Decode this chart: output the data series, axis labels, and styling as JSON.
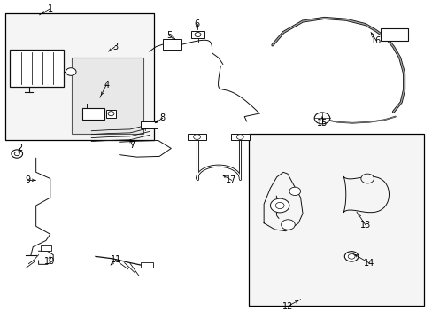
{
  "bg_color": "#ffffff",
  "part_color": "#111111",
  "box_fill": "#f0f0f0",
  "box_edge": "#333333",
  "label_fontsize": 7,
  "lw_thin": 0.7,
  "lw_med": 1.2,
  "lw_thick": 2.2,
  "boxes": {
    "b1": [
      0.01,
      0.56,
      0.345,
      0.4
    ],
    "b3": [
      0.165,
      0.58,
      0.165,
      0.24
    ],
    "b12": [
      0.575,
      0.04,
      0.405,
      0.54
    ]
  },
  "labels": [
    [
      1,
      0.115,
      0.975,
      0.09,
      0.955,
      true
    ],
    [
      2,
      0.045,
      0.535,
      0.043,
      0.518,
      true
    ],
    [
      3,
      0.265,
      0.855,
      0.25,
      0.84,
      true
    ],
    [
      4,
      0.245,
      0.735,
      0.23,
      0.695,
      true
    ],
    [
      5,
      0.39,
      0.89,
      0.405,
      0.878,
      true
    ],
    [
      6,
      0.455,
      0.928,
      0.455,
      0.91,
      true
    ],
    [
      7,
      0.305,
      0.545,
      0.3,
      0.563,
      true
    ],
    [
      8,
      0.375,
      0.63,
      0.358,
      0.615,
      true
    ],
    [
      9,
      0.063,
      0.435,
      0.08,
      0.435,
      true
    ],
    [
      10,
      0.113,
      0.18,
      0.115,
      0.198,
      true
    ],
    [
      11,
      0.268,
      0.185,
      0.255,
      0.168,
      true
    ],
    [
      12,
      0.665,
      0.038,
      0.695,
      0.06,
      true
    ],
    [
      13,
      0.845,
      0.295,
      0.825,
      0.335,
      true
    ],
    [
      14,
      0.853,
      0.175,
      0.815,
      0.205,
      true
    ],
    [
      15,
      0.745,
      0.615,
      0.745,
      0.635,
      true
    ],
    [
      16,
      0.87,
      0.875,
      0.858,
      0.9,
      true
    ],
    [
      17,
      0.535,
      0.435,
      0.515,
      0.45,
      true
    ]
  ]
}
